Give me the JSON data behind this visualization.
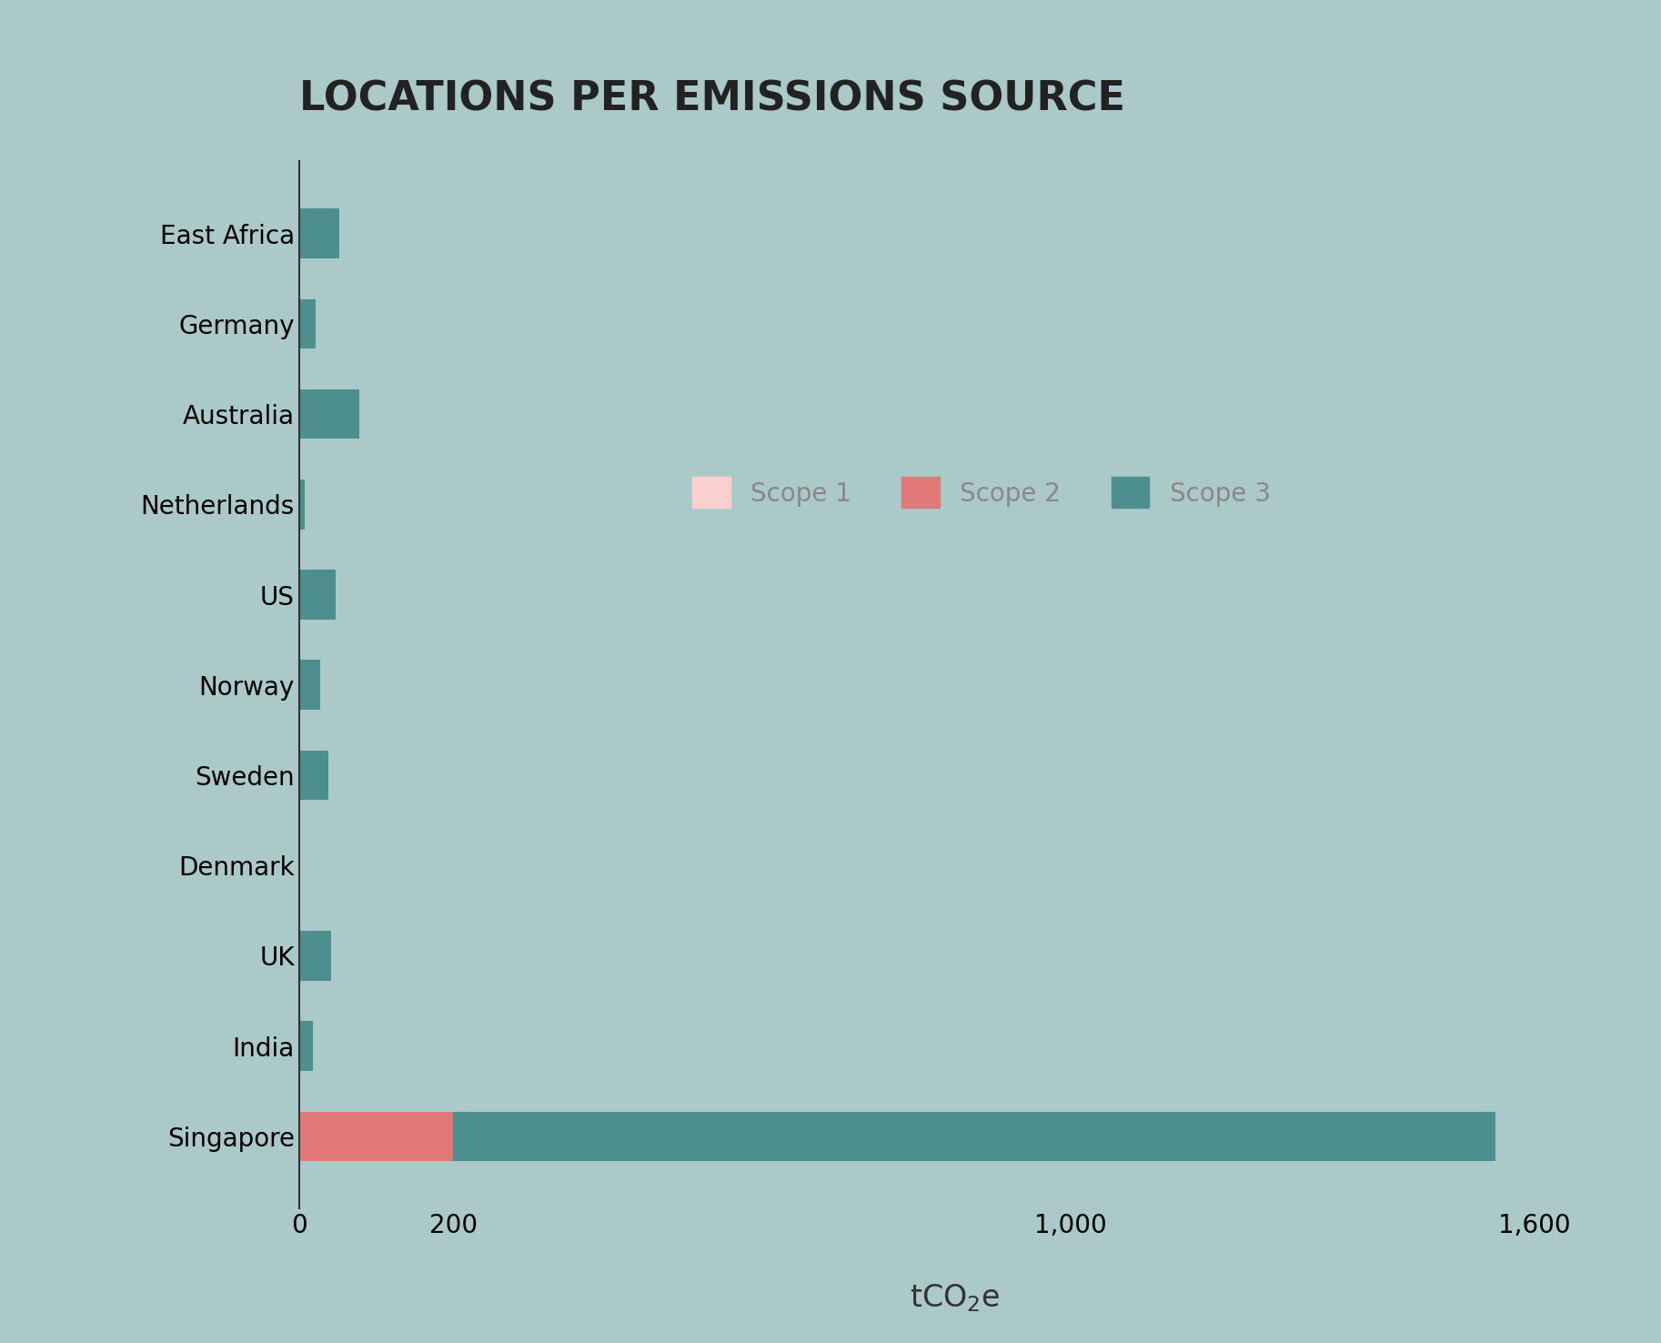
{
  "title": "LOCATIONS PER EMISSIONS SOURCE",
  "background_color": "#aac9c8",
  "categories": [
    "Singapore",
    "India",
    "UK",
    "Denmark",
    "Sweden",
    "Norway",
    "US",
    "Netherlands",
    "Australia",
    "Germany",
    "East Africa"
  ],
  "scope1": [
    0,
    0,
    0,
    0,
    0,
    0,
    0,
    0,
    0,
    0,
    0
  ],
  "scope2": [
    200,
    0,
    0,
    0,
    0,
    0,
    0,
    0,
    0,
    0,
    0
  ],
  "scope3": [
    1350,
    18,
    42,
    0,
    38,
    28,
    48,
    8,
    78,
    22,
    52
  ],
  "scope1_color": "#f9d0d0",
  "scope2_color": "#e07878",
  "scope3_color": "#4d8e8e",
  "xlim": [
    0,
    1700
  ],
  "xticks": [
    0,
    200,
    1000,
    1600
  ],
  "xtick_labels": [
    "0",
    "200",
    "1,000",
    "1,600"
  ],
  "title_fontsize": 32,
  "label_fontsize": 22,
  "tick_fontsize": 20,
  "legend_fontsize": 20,
  "bar_height": 0.55
}
